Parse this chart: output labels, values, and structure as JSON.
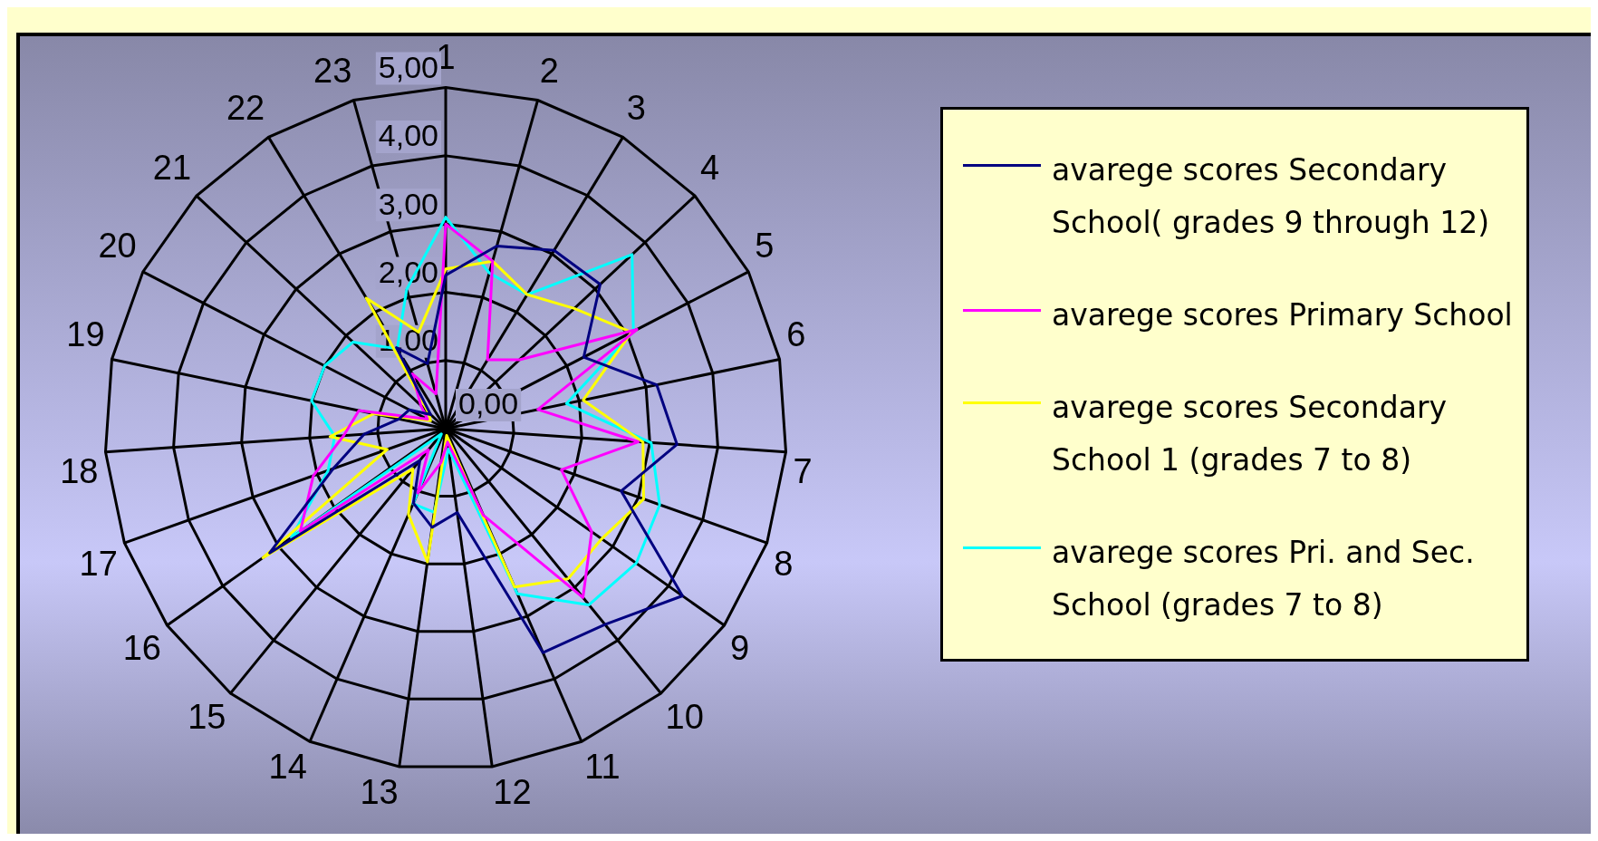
{
  "chart_data": {
    "type": "radar",
    "categories": [
      "1",
      "2",
      "3",
      "4",
      "5",
      "6",
      "7",
      "8",
      "9",
      "10",
      "11",
      "12",
      "13",
      "14",
      "15",
      "16",
      "17",
      "18",
      "19",
      "20",
      "21",
      "22",
      "23"
    ],
    "series": [
      {
        "name": "avarege scores Secondary School( grades 9 through 12)",
        "color": "#000080",
        "values": [
          2.25,
          2.78,
          3.06,
          3.1,
          2.28,
          3.16,
          3.4,
          2.73,
          4.25,
          3.7,
          3.58,
          1.24,
          1.46,
          1.19,
          0.6,
          3.16,
          1.75,
          1.2,
          0.7,
          0.6,
          0.3,
          1.39,
          0.99
        ]
      },
      {
        "name": "avarege scores Primary School",
        "color": "#ff00ff",
        "values": [
          3.0,
          2.55,
          1.18,
          1.48,
          3.16,
          1.38,
          2.83,
          1.8,
          2.62,
          3.19,
          1.38,
          0.2,
          0.5,
          1.03,
          0.4,
          2.61,
          2.06,
          1.5,
          1.3,
          0.3,
          0.5,
          0.94,
          0.53
        ]
      },
      {
        "name": "avarege scores Secondary School 1 (grades 7 to 8)",
        "color": "#ffff00",
        "values": [
          2.34,
          2.55,
          2.3,
          2.58,
          3.07,
          2.06,
          2.9,
          3.08,
          2.8,
          2.84,
          2.53,
          0.1,
          1.97,
          1.37,
          0.76,
          3.28,
          0.91,
          1.7,
          1.08,
          0.25,
          0.35,
          2.24,
          1.47
        ]
      },
      {
        "name": "avarege scores Pri. and Sec. School (grades 7 to 8)",
        "color": "#00ffff",
        "values": [
          3.1,
          2.37,
          2.3,
          3.74,
          3.1,
          1.81,
          3.02,
          3.33,
          3.42,
          3.33,
          2.64,
          0.3,
          1.24,
          1.2,
          0.1,
          2.77,
          1.83,
          1.63,
          2.01,
          2.0,
          1.86,
          1.37,
          2.12
        ]
      }
    ],
    "ylim": [
      0,
      5
    ],
    "yticks": [
      {
        "value": 0,
        "label": "0,00"
      },
      {
        "value": 1,
        "label": "1,00"
      },
      {
        "value": 2,
        "label": "2,00"
      },
      {
        "value": 3,
        "label": "3,00"
      },
      {
        "value": 4,
        "label": "4,00"
      },
      {
        "value": 5,
        "label": "5,00"
      }
    ],
    "grid": true,
    "legend": "right",
    "marker": "none"
  }
}
